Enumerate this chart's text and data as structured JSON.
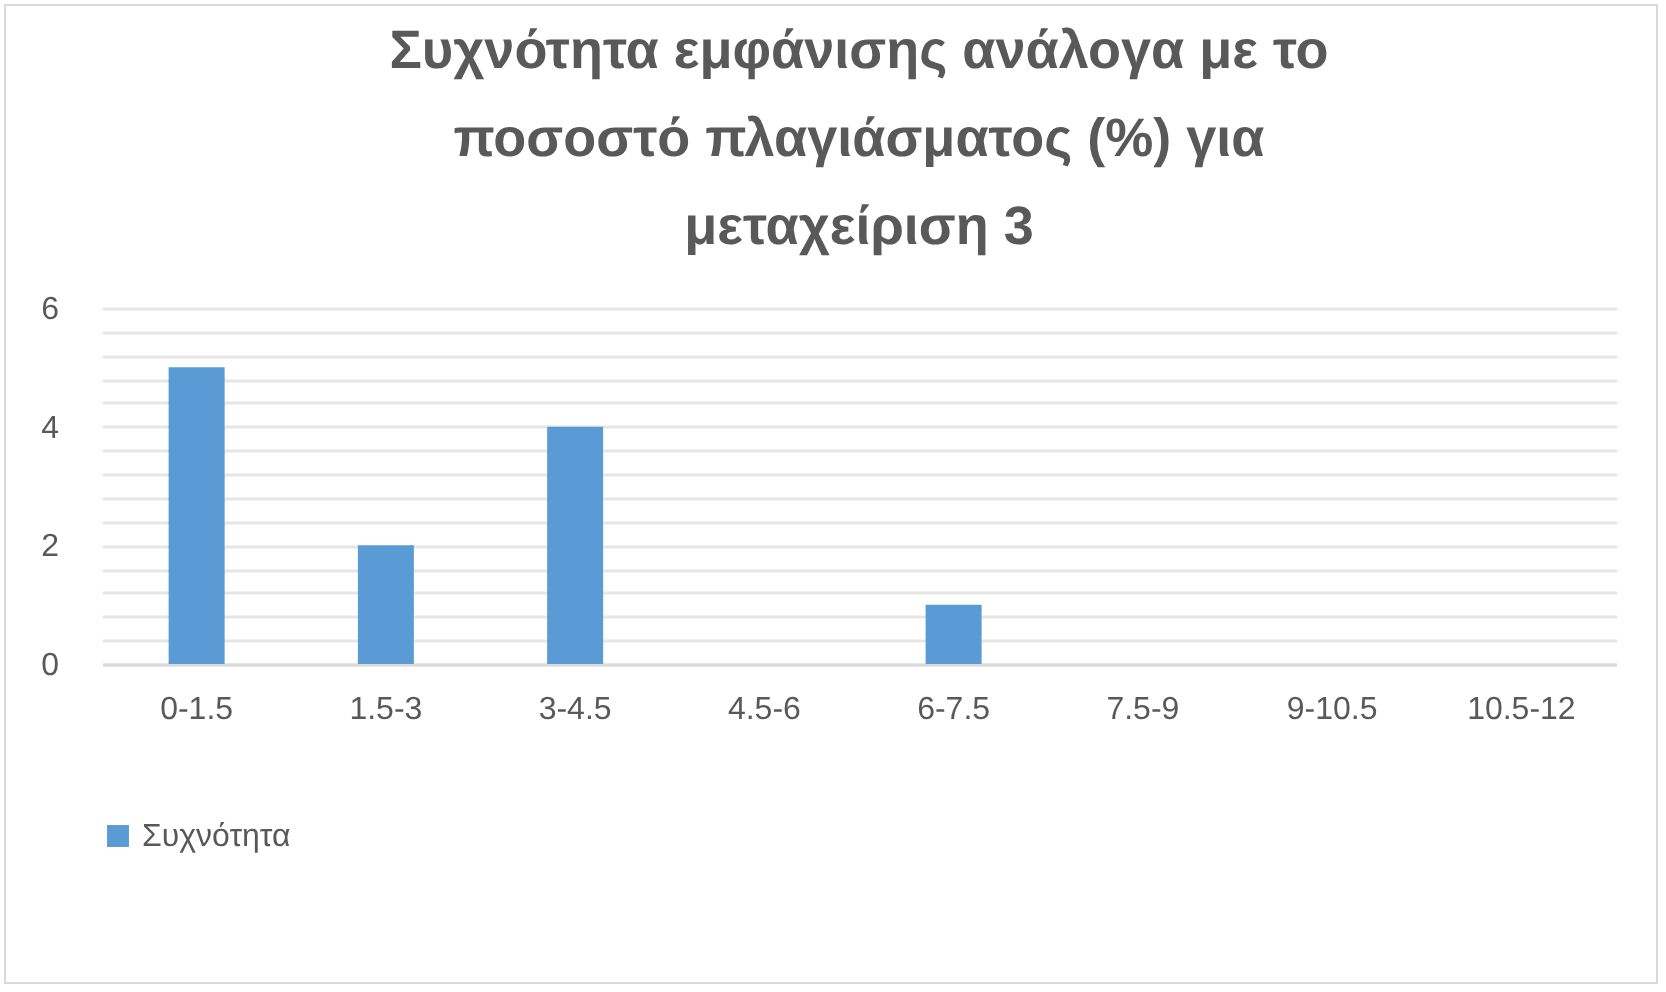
{
  "chart_data": {
    "type": "bar",
    "title": "Συχνότητα εμφάνισης ανάλογα με το ποσοστό πλαγιάσματος (%) για μεταχείριση 3",
    "categories": [
      "0-1.5",
      "1.5-3",
      "3-4.5",
      "4.5-6",
      "6-7.5",
      "7.5-9",
      "9-10.5",
      "10.5-12"
    ],
    "series": [
      {
        "name": "Συχνότητα",
        "color": "#5b9bd5",
        "values": [
          5,
          2,
          4,
          0,
          1,
          0,
          0,
          0
        ]
      }
    ],
    "ylim": [
      0,
      6
    ],
    "yticks": [
      0,
      {
        "value": 0.4,
        "label": null
      },
      {
        "value": 0.8,
        "label": null
      },
      {
        "value": 1.2,
        "label": null
      },
      {
        "value": 1.6,
        "label": null
      },
      2,
      {
        "value": 2.4,
        "label": null
      },
      {
        "value": 2.8,
        "label": null
      },
      {
        "value": 3.2,
        "label": null
      },
      {
        "value": 3.6,
        "label": null
      },
      4,
      {
        "value": 4.4,
        "label": null
      },
      {
        "value": 4.8,
        "label": null
      },
      {
        "value": 5.2,
        "label": null
      },
      {
        "value": 5.6,
        "label": null
      },
      6
    ],
    "grid": "y",
    "legend": "bottom"
  }
}
